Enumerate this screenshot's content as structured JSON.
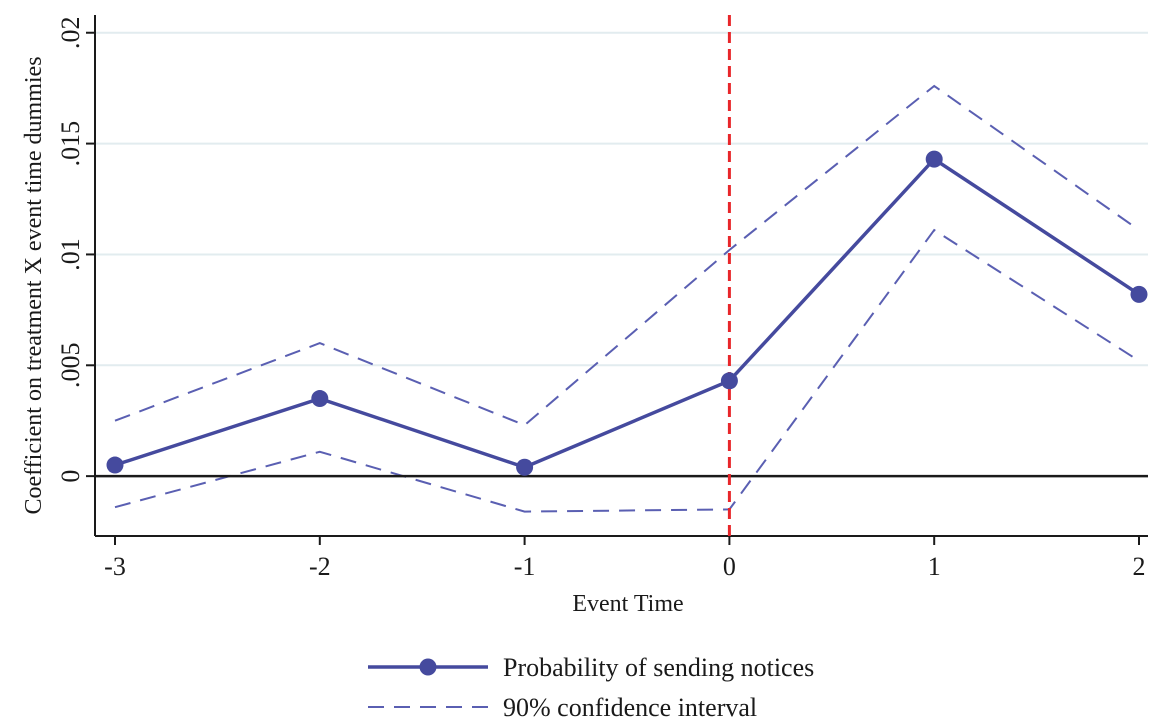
{
  "chart_data": {
    "type": "line",
    "xlabel": "Event Time",
    "ylabel": "Coefficient on treatment X event time dummies",
    "x": [
      -3,
      -2,
      -1,
      0,
      1,
      2
    ],
    "x_tick_labels": [
      "-3",
      "-2",
      "-1",
      "0",
      "1",
      "2"
    ],
    "y_ticks": [
      0,
      0.005,
      0.01,
      0.015,
      0.02
    ],
    "y_tick_labels": [
      "0",
      ".005",
      ".01",
      ".015",
      ".02"
    ],
    "xlim": [
      -3,
      2
    ],
    "ylim": [
      -0.0027,
      0.0208
    ],
    "grid": "horizontal",
    "reference_lines": {
      "horizontal_at_y": 0,
      "vertical_at_x": 0,
      "vertical_color": "#e8262a"
    },
    "series": [
      {
        "name": "Probability of sending notices",
        "style": "solid-with-markers",
        "color": "#454a9e",
        "values": [
          0.0005,
          0.0035,
          0.0004,
          0.0043,
          0.0143,
          0.0082
        ]
      },
      {
        "name": "90% confidence interval",
        "style": "dashed",
        "color": "#5a5fb2",
        "upper": [
          0.0025,
          0.006,
          0.0023,
          0.0102,
          0.0176,
          0.0111
        ],
        "lower": [
          -0.0014,
          0.0011,
          -0.0016,
          -0.0015,
          0.0111,
          0.0052
        ]
      }
    ],
    "legend_position": "bottom-center"
  }
}
